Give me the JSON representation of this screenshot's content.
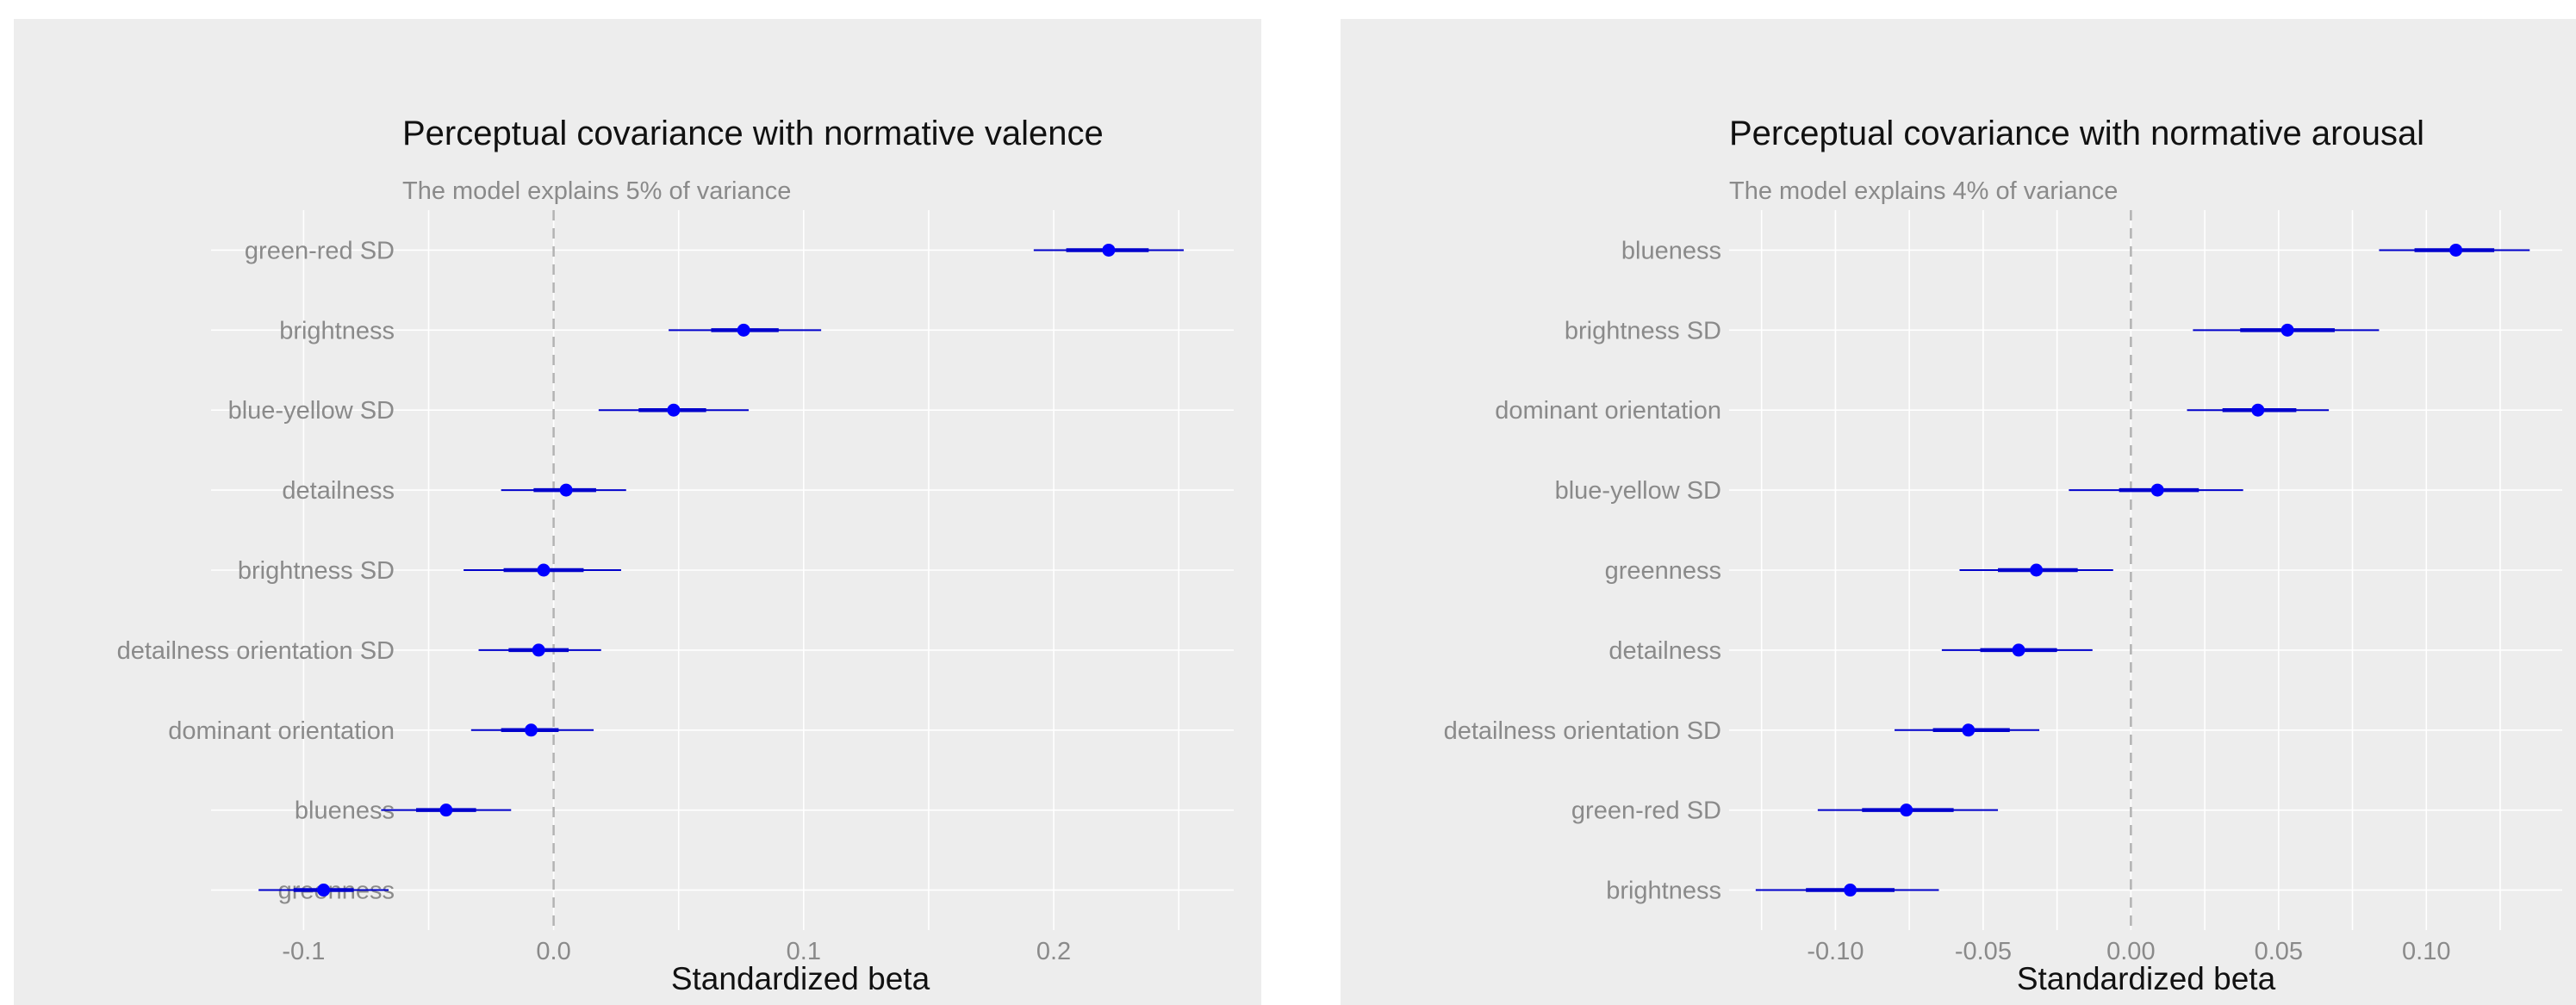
{
  "colors": {
    "panel_background": "#ededed",
    "point": "#0000ff",
    "interval": "#0000cc",
    "zero_line": "#b3b3b3"
  },
  "chart_data": [
    {
      "type": "forest",
      "title": "Perceptual covariance with normative valence",
      "subtitle": "The model explains 5% of variance",
      "xlabel": "Standardized beta",
      "ylabel": "",
      "xlim": [
        -0.137,
        0.272
      ],
      "x_ticks": [
        -0.1,
        0.0,
        0.1,
        0.2
      ],
      "x_tick_labels": [
        "-0.1",
        "0.0",
        "0.1",
        "0.2"
      ],
      "reference_line": 0,
      "grid": true,
      "categories": [
        "green-red SD",
        "brightness",
        "blue-yellow SD",
        "detailness",
        "brightness SD",
        "detailness orientation SD",
        "dominant orientation",
        "blueness",
        "greenness"
      ],
      "estimates": [
        0.222,
        0.076,
        0.048,
        0.005,
        -0.004,
        -0.006,
        -0.009,
        -0.043,
        -0.092
      ],
      "inner_interval": [
        [
          0.205,
          0.238
        ],
        [
          0.063,
          0.09
        ],
        [
          0.034,
          0.061
        ],
        [
          -0.008,
          0.017
        ],
        [
          -0.02,
          0.012
        ],
        [
          -0.018,
          0.006
        ],
        [
          -0.021,
          0.002
        ],
        [
          -0.055,
          -0.031
        ],
        [
          -0.104,
          -0.08
        ]
      ],
      "outer_interval": [
        [
          0.192,
          0.252
        ],
        [
          0.046,
          0.107
        ],
        [
          0.018,
          0.078
        ],
        [
          -0.021,
          0.029
        ],
        [
          -0.036,
          0.027
        ],
        [
          -0.03,
          0.019
        ],
        [
          -0.033,
          0.016
        ],
        [
          -0.069,
          -0.017
        ],
        [
          -0.118,
          -0.066
        ]
      ]
    },
    {
      "type": "forest",
      "title": "Perceptual covariance with normative arousal",
      "subtitle": "The model explains 4% of variance",
      "xlabel": "Standardized beta",
      "ylabel": "",
      "xlim": [
        -0.136,
        0.146
      ],
      "x_ticks": [
        -0.1,
        -0.05,
        0.0,
        0.05,
        0.1
      ],
      "x_tick_labels": [
        "-0.10",
        "-0.05",
        "0.00",
        "0.05",
        "0.10"
      ],
      "reference_line": 0,
      "grid": true,
      "categories": [
        "blueness",
        "brightness SD",
        "dominant orientation",
        "blue-yellow SD",
        "greenness",
        "detailness",
        "detailness orientation SD",
        "green-red SD",
        "brightness"
      ],
      "estimates": [
        0.11,
        0.053,
        0.043,
        0.009,
        -0.032,
        -0.038,
        -0.055,
        -0.076,
        -0.095
      ],
      "inner_interval": [
        [
          0.096,
          0.123
        ],
        [
          0.037,
          0.069
        ],
        [
          0.031,
          0.056
        ],
        [
          -0.004,
          0.023
        ],
        [
          -0.045,
          -0.018
        ],
        [
          -0.051,
          -0.025
        ],
        [
          -0.067,
          -0.041
        ],
        [
          -0.091,
          -0.06
        ],
        [
          -0.11,
          -0.08
        ]
      ],
      "outer_interval": [
        [
          0.084,
          0.135
        ],
        [
          0.021,
          0.084
        ],
        [
          0.019,
          0.067
        ],
        [
          -0.021,
          0.038
        ],
        [
          -0.058,
          -0.006
        ],
        [
          -0.064,
          -0.013
        ],
        [
          -0.08,
          -0.031
        ],
        [
          -0.106,
          -0.045
        ],
        [
          -0.127,
          -0.065
        ]
      ]
    }
  ]
}
